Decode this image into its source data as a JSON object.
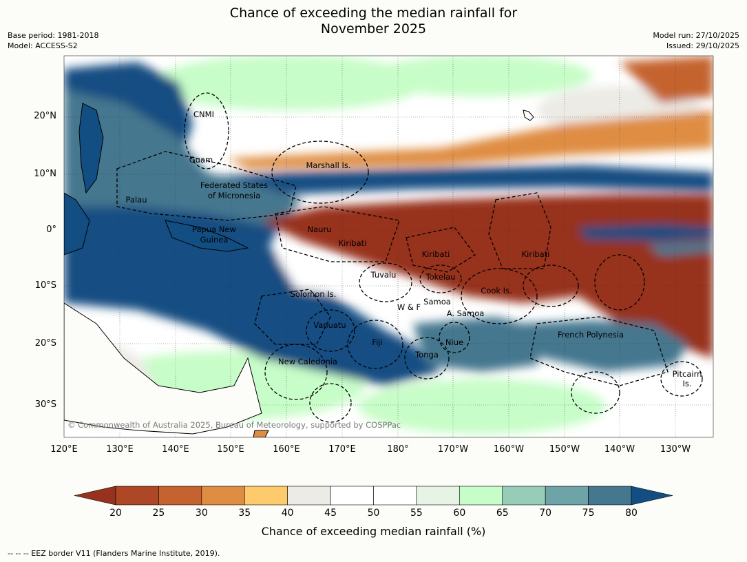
{
  "title_line1": "Chance of exceeding the median rainfall for",
  "title_line2": "November 2025",
  "meta_left": [
    "Base period: 1981-2018",
    "Model: ACCESS-S2"
  ],
  "meta_right": [
    "Model run: 27/10/2025",
    "Issued: 29/10/2025"
  ],
  "lat_labels": [
    "20°N",
    "10°N",
    "0°",
    "10°S",
    "20°S",
    "30°S"
  ],
  "lon_labels": [
    "120°E",
    "130°E",
    "140°E",
    "150°E",
    "160°E",
    "170°E",
    "180°",
    "170°W",
    "160°W",
    "150°W",
    "140°W",
    "130°W"
  ],
  "places": {
    "cnmi": "CNMI",
    "guam": "Guam",
    "marshall": "Marshall Is.",
    "fsm1": "Federated States",
    "fsm2": "of Micronesia",
    "palau": "Palau",
    "png1": "Papua New",
    "png2": "Guinea",
    "nauru": "Nauru",
    "kiribati_w": "Kiribati",
    "kiribati_c": "Kiribati",
    "kiribati_e": "Kiribati",
    "tuvalu": "Tuvalu",
    "tokelau": "Tokelau",
    "cook": "Cook Is.",
    "solomon": "Solomon Is.",
    "samoa": "Samoa",
    "wf": "W & F",
    "asamoa": "A. Samoa",
    "vanuatu": "Vanuatu",
    "fiji": "Fiji",
    "niue": "Niue",
    "tonga": "Tonga",
    "frenchpoly": "French Polynesia",
    "newcal": "New Caledonia",
    "pitcairn1": "Pitcairn",
    "pitcairn2": "Is."
  },
  "copyright": "© Commonwealth of Australia 2025, Bureau of Meteorology, supported by COSPPac",
  "colorbar": {
    "ticks": [
      "20",
      "25",
      "30",
      "35",
      "40",
      "45",
      "50",
      "55",
      "60",
      "65",
      "70",
      "75",
      "80"
    ],
    "colors": [
      "#97321e",
      "#ad4726",
      "#c4632f",
      "#df8d43",
      "#fdcb6b",
      "#ecebe6",
      "#ffffff",
      "#ffffff",
      "#e7f4e5",
      "#c7fdc8",
      "#97ccb8",
      "#6ea3a8",
      "#45778f",
      "#124e82"
    ],
    "title": "Chance of exceeding median rainfall (%)"
  },
  "eez_note": "--  --  -- EEZ border V11 (Flanders Marine Institute, 2019)."
}
